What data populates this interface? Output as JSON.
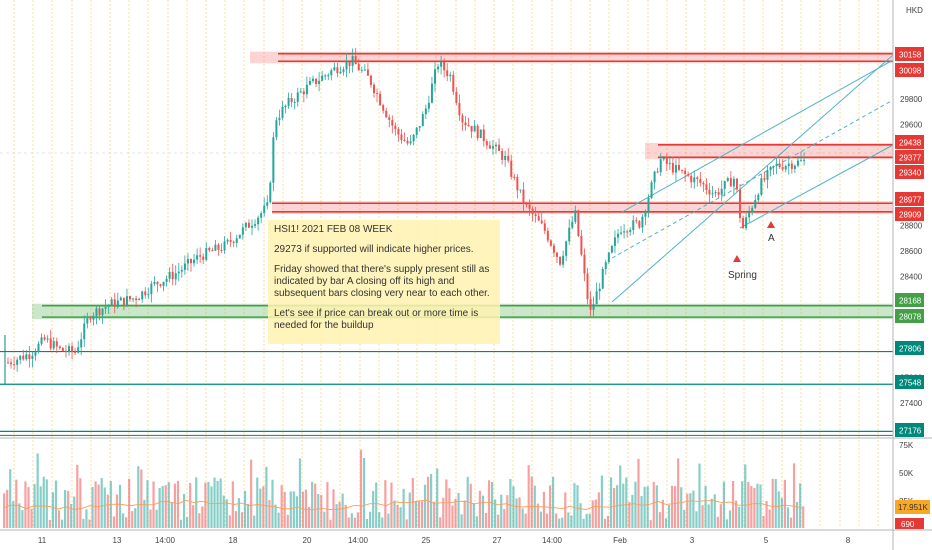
{
  "chart_data": {
    "type": "candlestick",
    "currency": "HKD",
    "symbol_top": "HSI1!",
    "y_ticks": [
      29800,
      29600,
      28800,
      28600,
      28400,
      27600,
      27400
    ],
    "y_range": [
      27130,
      30350
    ],
    "x_ticks": [
      "11",
      "13",
      "14:00",
      "18",
      "20",
      "14:00",
      "25",
      "27",
      "14:00",
      "Feb",
      "3",
      "5",
      "8"
    ],
    "price_labels": [
      {
        "text": "30158",
        "kind": "red"
      },
      {
        "text": "30098",
        "kind": "red"
      },
      {
        "text": "29438",
        "kind": "red"
      },
      {
        "text": "29377",
        "kind": "red"
      },
      {
        "text": "29340",
        "kind": "red"
      },
      {
        "text": "28977",
        "kind": "red"
      },
      {
        "text": "28909",
        "kind": "red"
      },
      {
        "text": "28168",
        "kind": "green"
      },
      {
        "text": "28078",
        "kind": "green"
      },
      {
        "text": "27806",
        "kind": "teal"
      },
      {
        "text": "27548",
        "kind": "teal"
      },
      {
        "text": "27176",
        "kind": "teal"
      }
    ],
    "volume_ticks": [
      "75K",
      "50K",
      "25K"
    ],
    "volume_last": "17.951K",
    "volume_bottom": "690",
    "annotations": [
      "Spring",
      "A"
    ],
    "note": [
      "HSI1! 2021 FEB 08 WEEK",
      "29273 if supported will indicate higher prices.",
      "Friday showed that there's supply present still as indicated by bar A closing off its high and subsequent bars closing very near to each other.",
      "Let's see if price can break out or more time is needed for the buildup"
    ],
    "zones": [
      {
        "name": "resistance-high",
        "from": 30098,
        "to": 30158
      },
      {
        "name": "resistance-mid",
        "from": 29340,
        "to": 29438
      },
      {
        "name": "resistance-low",
        "from": 28909,
        "to": 28977
      },
      {
        "name": "support",
        "from": 28078,
        "to": 28168
      }
    ],
    "levels": [
      27806,
      27548,
      27176
    ],
    "colors": {
      "up": "#26a69a",
      "down": "#ef5350",
      "red_label": "#e53935",
      "green_label": "#43a047",
      "teal": "#00897b",
      "channel": "#4fb3c9",
      "volume_ma": "#f5a05a",
      "vol_label": "#f9a825"
    }
  }
}
